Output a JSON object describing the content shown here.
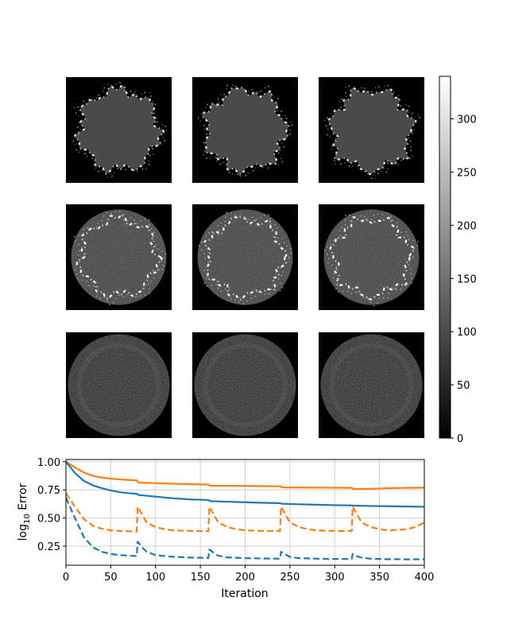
{
  "chart_data": [
    {
      "type": "heatmap",
      "layout": "3x3 grid of grayscale reconstruction images",
      "colormap": "gray",
      "colorbar": {
        "vmin": 0,
        "vmax": 340,
        "ticks": [
          0,
          50,
          100,
          150,
          200,
          250,
          300
        ],
        "tick_labels": [
          "0",
          "50",
          "100",
          "150",
          "200",
          "250",
          "300"
        ],
        "placement": "right"
      },
      "rows": [
        {
          "description": "flat gray disk (~value 60) with bright jagged edges"
        },
        {
          "description": "dark noisy interior with bright ring at edge"
        },
        {
          "description": "faint noisy disk, low intensity"
        }
      ]
    },
    {
      "type": "line",
      "xlabel": "Iteration",
      "ylabel_prefix": "log",
      "ylabel_sub": "10",
      "ylabel_suffix": " Error",
      "xlim": [
        0,
        400
      ],
      "ylim": [
        0.08,
        1.02
      ],
      "xticks": [
        0,
        50,
        100,
        150,
        200,
        250,
        300,
        350,
        400
      ],
      "xtick_labels": [
        "0",
        "50",
        "100",
        "150",
        "200",
        "250",
        "300",
        "350",
        "400"
      ],
      "yticks": [
        0.25,
        0.5,
        0.75,
        1.0
      ],
      "ytick_labels": [
        "0.25",
        "0.50",
        "0.75",
        "1.00"
      ],
      "grid": true,
      "series": [
        {
          "color": "#ff7f0e",
          "style": "solid",
          "points": [
            [
              0,
              1.0
            ],
            [
              10,
              0.95
            ],
            [
              20,
              0.905
            ],
            [
              30,
              0.875
            ],
            [
              40,
              0.86
            ],
            [
              50,
              0.85
            ],
            [
              60,
              0.843
            ],
            [
              70,
              0.838
            ],
            [
              79,
              0.835
            ],
            [
              81,
              0.815
            ],
            [
              100,
              0.81
            ],
            [
              120,
              0.805
            ],
            [
              140,
              0.8
            ],
            [
              159,
              0.797
            ],
            [
              161,
              0.787
            ],
            [
              180,
              0.786
            ],
            [
              200,
              0.785
            ],
            [
              220,
              0.783
            ],
            [
              239,
              0.782
            ],
            [
              241,
              0.772
            ],
            [
              260,
              0.771
            ],
            [
              280,
              0.77
            ],
            [
              300,
              0.769
            ],
            [
              319,
              0.768
            ],
            [
              321,
              0.758
            ],
            [
              340,
              0.76
            ],
            [
              360,
              0.765
            ],
            [
              380,
              0.768
            ],
            [
              400,
              0.77
            ]
          ]
        },
        {
          "color": "#1f77b4",
          "style": "solid",
          "points": [
            [
              0,
              1.0
            ],
            [
              10,
              0.9
            ],
            [
              20,
              0.83
            ],
            [
              30,
              0.79
            ],
            [
              40,
              0.765
            ],
            [
              50,
              0.745
            ],
            [
              60,
              0.73
            ],
            [
              70,
              0.72
            ],
            [
              79,
              0.715
            ],
            [
              81,
              0.705
            ],
            [
              100,
              0.69
            ],
            [
              120,
              0.675
            ],
            [
              140,
              0.665
            ],
            [
              159,
              0.66
            ],
            [
              161,
              0.65
            ],
            [
              180,
              0.645
            ],
            [
              200,
              0.64
            ],
            [
              220,
              0.635
            ],
            [
              239,
              0.632
            ],
            [
              241,
              0.627
            ],
            [
              260,
              0.622
            ],
            [
              280,
              0.618
            ],
            [
              300,
              0.614
            ],
            [
              319,
              0.612
            ],
            [
              321,
              0.61
            ],
            [
              340,
              0.607
            ],
            [
              360,
              0.605
            ],
            [
              380,
              0.602
            ],
            [
              400,
              0.6
            ]
          ]
        },
        {
          "color": "#ff7f0e",
          "style": "dashed",
          "points": [
            [
              0,
              0.72
            ],
            [
              10,
              0.6
            ],
            [
              20,
              0.49
            ],
            [
              30,
              0.43
            ],
            [
              40,
              0.405
            ],
            [
              50,
              0.39
            ],
            [
              60,
              0.385
            ],
            [
              70,
              0.382
            ],
            [
              79,
              0.38
            ],
            [
              80,
              0.6
            ],
            [
              85,
              0.53
            ],
            [
              90,
              0.46
            ],
            [
              100,
              0.42
            ],
            [
              110,
              0.4
            ],
            [
              120,
              0.39
            ],
            [
              140,
              0.385
            ],
            [
              159,
              0.383
            ],
            [
              160,
              0.6
            ],
            [
              165,
              0.53
            ],
            [
              170,
              0.46
            ],
            [
              180,
              0.42
            ],
            [
              190,
              0.4
            ],
            [
              200,
              0.39
            ],
            [
              220,
              0.385
            ],
            [
              239,
              0.385
            ],
            [
              240,
              0.6
            ],
            [
              245,
              0.53
            ],
            [
              250,
              0.46
            ],
            [
              260,
              0.42
            ],
            [
              270,
              0.4
            ],
            [
              280,
              0.39
            ],
            [
              300,
              0.385
            ],
            [
              319,
              0.385
            ],
            [
              320,
              0.6
            ],
            [
              325,
              0.53
            ],
            [
              330,
              0.46
            ],
            [
              340,
              0.42
            ],
            [
              350,
              0.4
            ],
            [
              360,
              0.39
            ],
            [
              380,
              0.4
            ],
            [
              390,
              0.42
            ],
            [
              400,
              0.46
            ]
          ]
        },
        {
          "color": "#1f77b4",
          "style": "dashed",
          "points": [
            [
              0,
              0.68
            ],
            [
              10,
              0.5
            ],
            [
              20,
              0.33
            ],
            [
              30,
              0.24
            ],
            [
              40,
              0.2
            ],
            [
              50,
              0.18
            ],
            [
              60,
              0.17
            ],
            [
              70,
              0.165
            ],
            [
              79,
              0.162
            ],
            [
              80,
              0.29
            ],
            [
              85,
              0.24
            ],
            [
              90,
              0.2
            ],
            [
              100,
              0.17
            ],
            [
              120,
              0.155
            ],
            [
              140,
              0.148
            ],
            [
              159,
              0.145
            ],
            [
              160,
              0.22
            ],
            [
              165,
              0.19
            ],
            [
              170,
              0.165
            ],
            [
              180,
              0.15
            ],
            [
              200,
              0.143
            ],
            [
              220,
              0.14
            ],
            [
              239,
              0.138
            ],
            [
              240,
              0.2
            ],
            [
              245,
              0.175
            ],
            [
              250,
              0.155
            ],
            [
              260,
              0.143
            ],
            [
              280,
              0.138
            ],
            [
              300,
              0.136
            ],
            [
              319,
              0.135
            ],
            [
              320,
              0.18
            ],
            [
              325,
              0.16
            ],
            [
              330,
              0.148
            ],
            [
              340,
              0.138
            ],
            [
              360,
              0.134
            ],
            [
              380,
              0.133
            ],
            [
              400,
              0.133
            ]
          ]
        }
      ]
    }
  ]
}
